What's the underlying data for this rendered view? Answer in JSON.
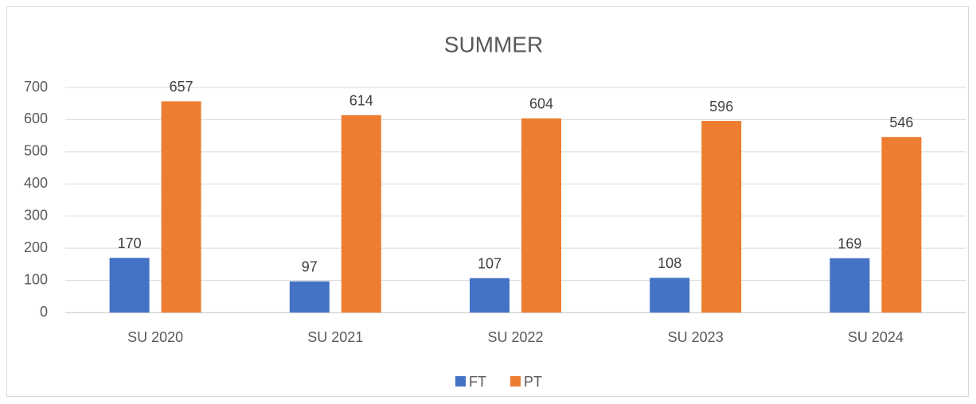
{
  "chart_data": {
    "type": "bar",
    "title": "SUMMER",
    "categories": [
      "SU 2020",
      "SU 2021",
      "SU 2022",
      "SU 2023",
      "SU 2024"
    ],
    "series": [
      {
        "name": "FT",
        "color": "#4472c4",
        "values": [
          170,
          97,
          107,
          108,
          169
        ]
      },
      {
        "name": "PT",
        "color": "#ed7d31",
        "values": [
          657,
          614,
          604,
          596,
          546
        ]
      }
    ],
    "ylim": [
      0,
      700
    ],
    "yticks": [
      0,
      100,
      200,
      300,
      400,
      500,
      600,
      700
    ],
    "grid": true,
    "legend": "bottom"
  }
}
